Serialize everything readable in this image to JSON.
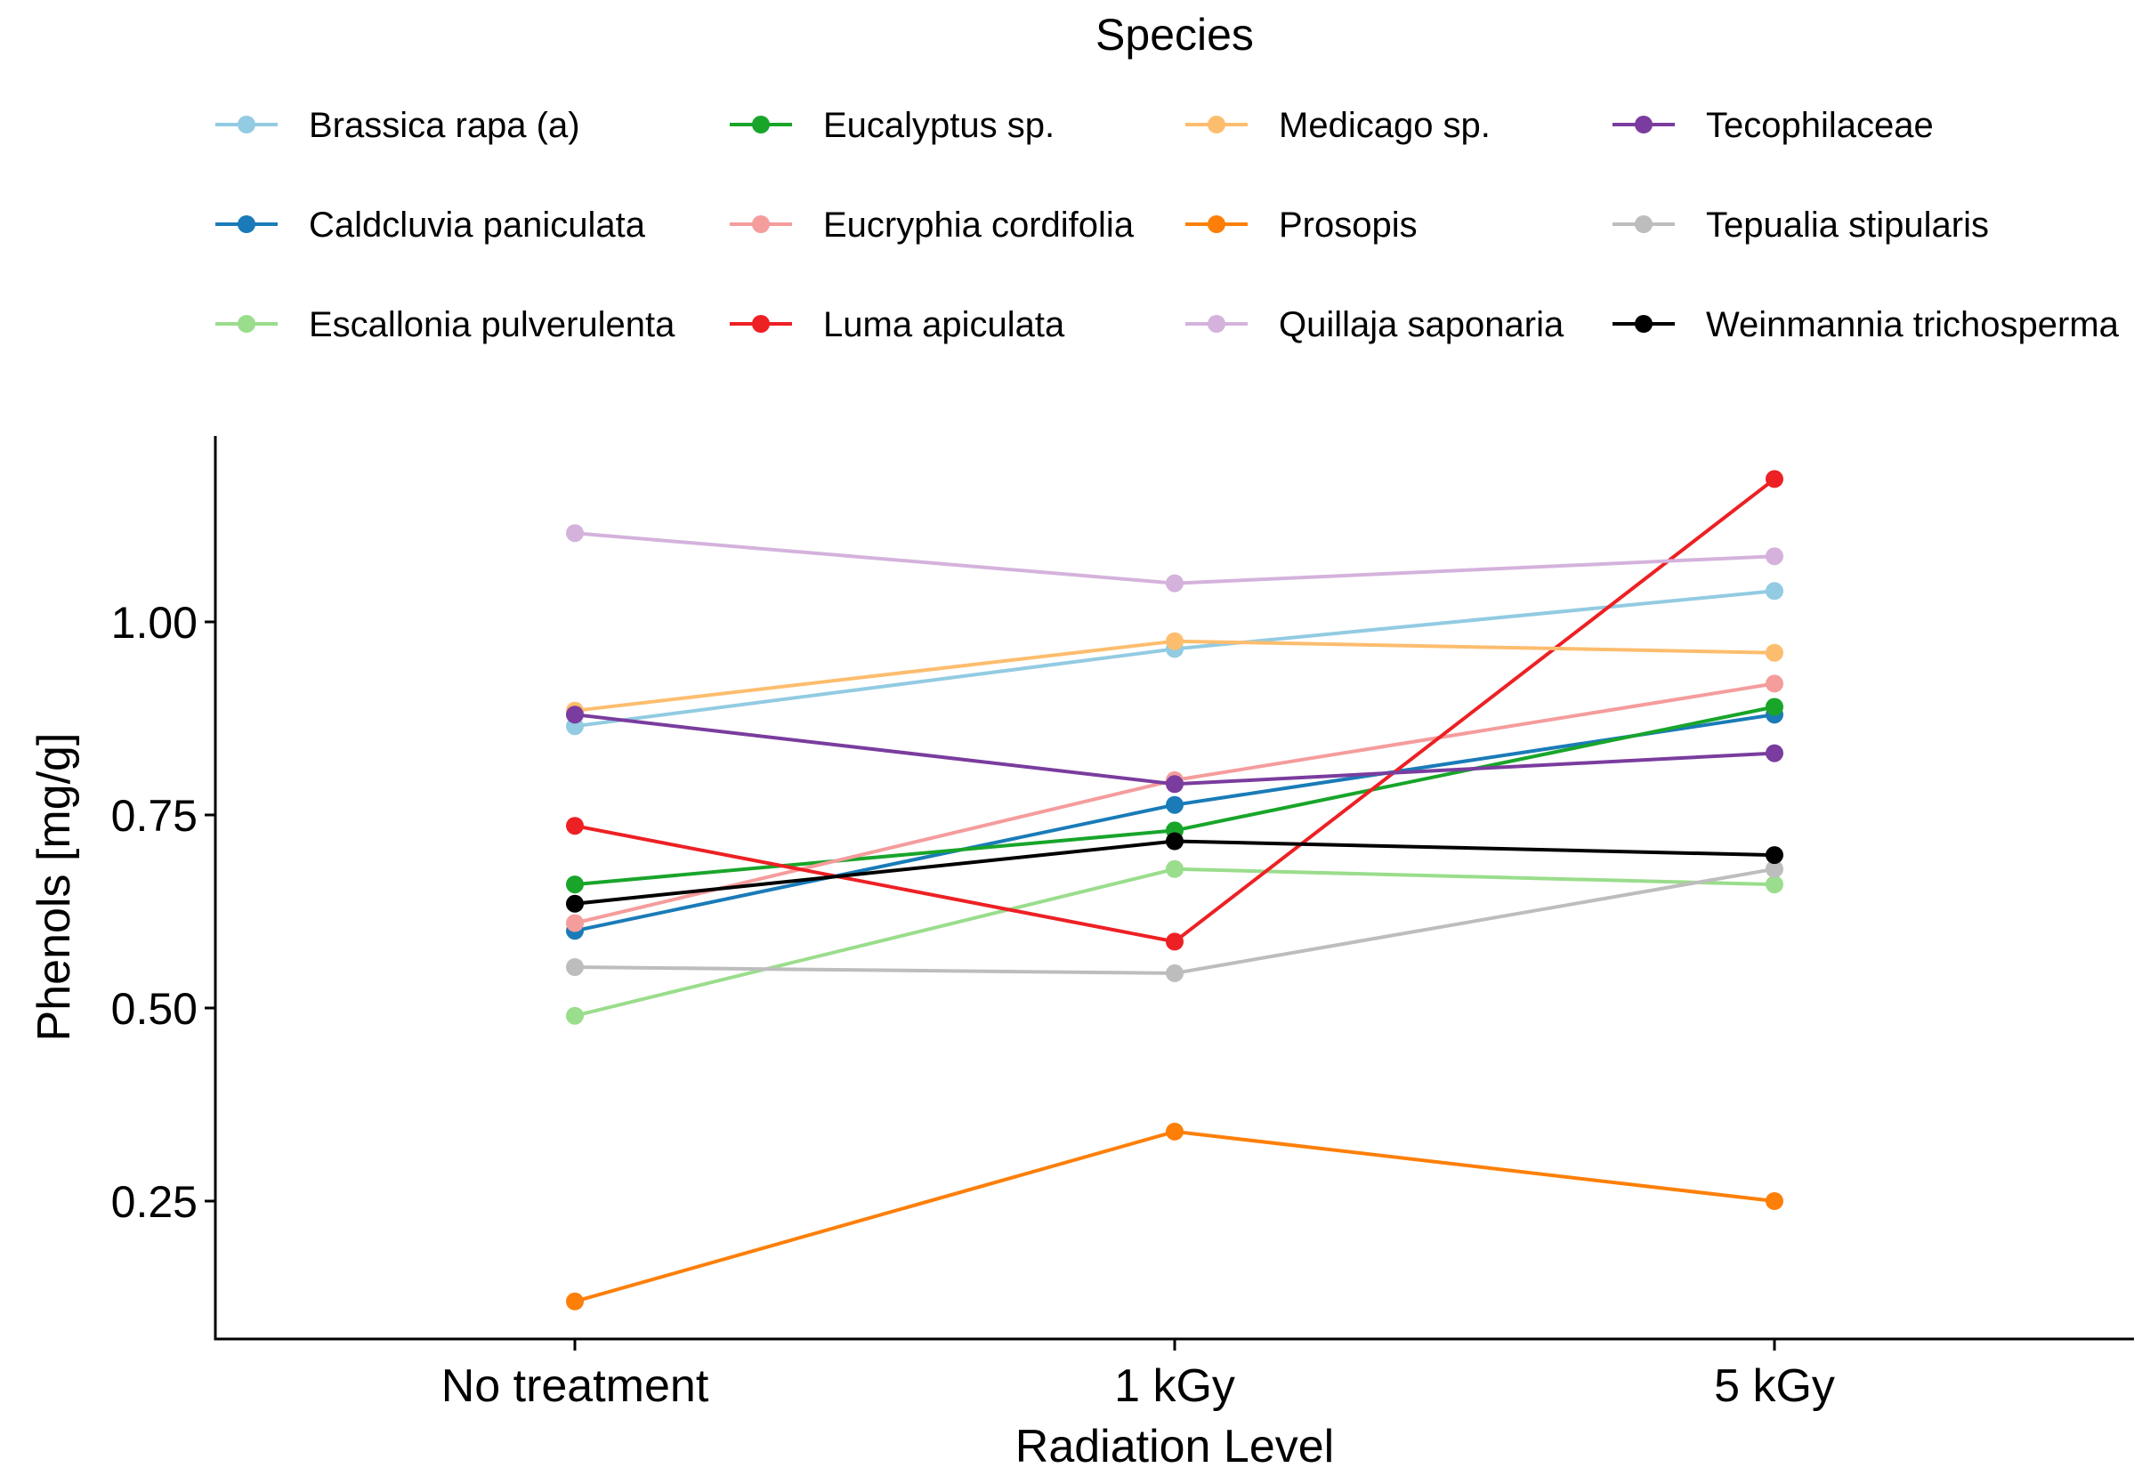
{
  "chart_data": {
    "type": "line",
    "title": "",
    "xlabel": "Radiation Level",
    "ylabel": "Phenols [mg/g]",
    "categories": [
      "No treatment",
      "1 kGy",
      "5 kGy"
    ],
    "yticks": [
      0.25,
      0.5,
      0.75,
      1.0
    ],
    "ytick_labels": [
      "0.25",
      "0.50",
      "0.75",
      "1.00"
    ],
    "ylim": [
      0.09,
      1.25
    ],
    "legend_title": "Species",
    "legend_position": "top",
    "grid": false,
    "series": [
      {
        "name": "Brassica rapa (a)",
        "color": "#92CBE2",
        "values": [
          0.865,
          0.965,
          1.04
        ]
      },
      {
        "name": "Caldcluvia paniculata",
        "color": "#1A7BB8",
        "values": [
          0.6,
          0.763,
          0.88
        ]
      },
      {
        "name": "Escallonia pulverulenta",
        "color": "#9ADD8C",
        "values": [
          0.49,
          0.68,
          0.66
        ]
      },
      {
        "name": "Eucalyptus sp.",
        "color": "#18A52A",
        "values": [
          0.66,
          0.73,
          0.89
        ]
      },
      {
        "name": "Eucryphia cordifolia",
        "color": "#F59C9C",
        "values": [
          0.61,
          0.795,
          0.92
        ]
      },
      {
        "name": "Luma apiculata",
        "color": "#ED2024",
        "values": [
          0.736,
          0.586,
          1.185
        ]
      },
      {
        "name": "Medicago sp.",
        "color": "#FDBD6E",
        "values": [
          0.885,
          0.975,
          0.96
        ]
      },
      {
        "name": "Prosopis",
        "color": "#FD7F08",
        "values": [
          0.12,
          0.34,
          0.25
        ]
      },
      {
        "name": "Quillaja saponaria",
        "color": "#D4B2DC",
        "values": [
          1.115,
          1.05,
          1.085
        ]
      },
      {
        "name": "Tecophilaceae",
        "color": "#7A3C9E",
        "values": [
          0.88,
          0.79,
          0.83
        ]
      },
      {
        "name": "Tepualia stipularis",
        "color": "#BDBDBD",
        "values": [
          0.553,
          0.545,
          0.68
        ]
      },
      {
        "name": "Weinmannia trichosperma",
        "color": "#000000",
        "values": [
          0.635,
          0.716,
          0.698
        ]
      }
    ]
  }
}
